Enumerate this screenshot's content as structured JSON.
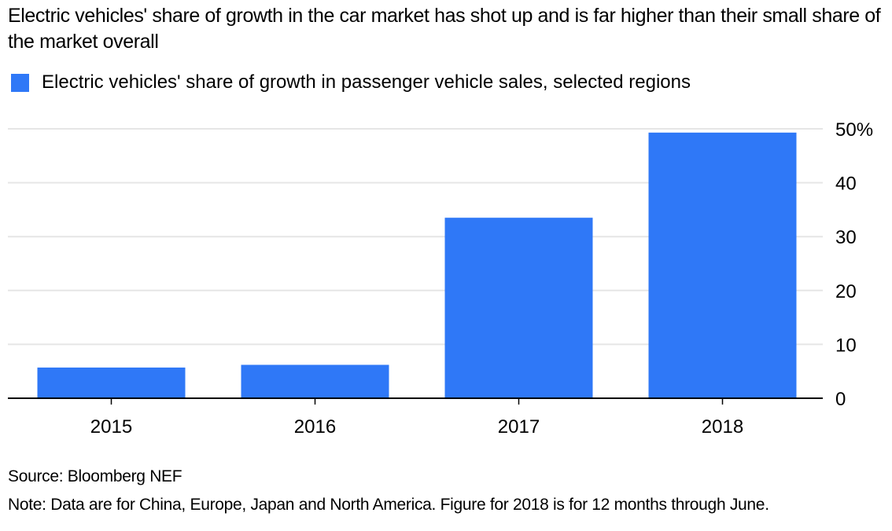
{
  "colors": {
    "bar": "#2f78f7",
    "grid": "#e6e6e6",
    "axis": "#000000"
  },
  "chart_data": {
    "type": "bar",
    "title": "Electric vehicles' share of growth in the car market has shot up and is far higher than their small share of the market overall",
    "categories": [
      "2015",
      "2016",
      "2017",
      "2018"
    ],
    "series": [
      {
        "name": "Electric vehicles' share of growth in passenger vehicle sales, selected regions",
        "values": [
          5.7,
          6.2,
          33.5,
          49.3
        ]
      }
    ],
    "ylim": [
      0,
      50
    ],
    "yticks": [
      0,
      10,
      20,
      30,
      40,
      50
    ],
    "ytick_labels": [
      "0",
      "10",
      "20",
      "30",
      "40",
      "50%"
    ],
    "grid": true,
    "y_axis_position": "right",
    "legend_position": "top-left"
  },
  "source": "Source: Bloomberg NEF",
  "note": "Note: Data are for China, Europe, Japan and North America. Figure for 2018 is for 12 months through June."
}
